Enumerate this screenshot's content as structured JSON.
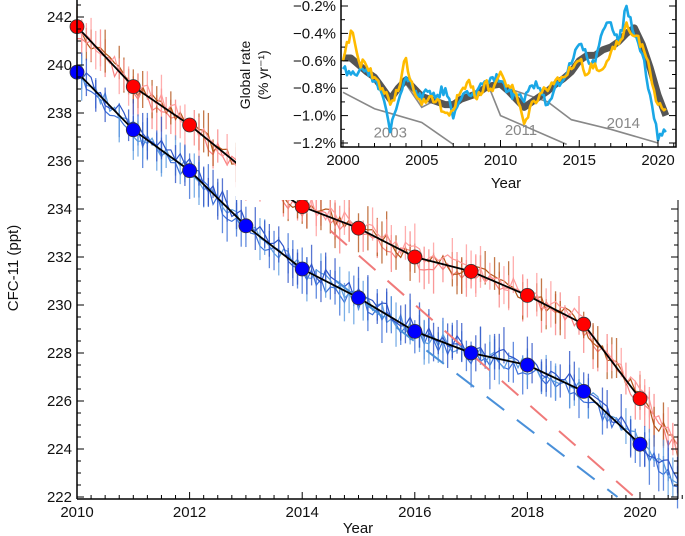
{
  "chart_data": [
    {
      "type": "line",
      "xlabel": "Year",
      "ylabel": "CFC-11 (ppt)",
      "xlim": [
        2010,
        2020.75
      ],
      "ylim": [
        222,
        242.5
      ],
      "xticks": [
        "2010",
        "2012",
        "2014",
        "2016",
        "2018",
        "2020"
      ],
      "yticks": [
        "222",
        "224",
        "226",
        "228",
        "230",
        "232",
        "234",
        "236",
        "238",
        "240",
        "242"
      ],
      "grid": false,
      "x": [
        2010,
        2011,
        2012,
        2013,
        2014,
        2015,
        2016,
        2017,
        2018,
        2019,
        2020
      ],
      "series": [
        {
          "color": "#ff0000",
          "line_color": "#000000",
          "values": [
            241.6,
            239.1,
            237.5,
            235.6,
            234.1,
            233.2,
            232.0,
            231.4,
            230.4,
            229.2,
            226.1
          ]
        },
        {
          "color": "#0000ff",
          "line_color": "#000000",
          "values": [
            239.7,
            237.3,
            235.6,
            233.3,
            231.5,
            230.3,
            228.9,
            228.0,
            227.5,
            226.4,
            224.2
          ]
        }
      ],
      "station_colors": {
        "red_group": [
          "#f98080",
          "#b5561b",
          "#ff9a9a"
        ],
        "blue_group": [
          "#3b6fd8",
          "#5b9ce0",
          "#2f55c8"
        ]
      },
      "projections": [
        {
          "color": "#f07a7a",
          "style": "dashed",
          "points": [
            [
              2014.5,
              233.1
            ],
            [
              2019.9,
              222
            ]
          ]
        },
        {
          "color": "#4a90d9",
          "style": "dashed",
          "points": [
            [
              2014.6,
              231.0
            ],
            [
              2019.6,
              222
            ]
          ]
        }
      ]
    },
    {
      "type": "line",
      "xlabel": "Year",
      "ylabel": "Global rate\n(% yr⁻¹)",
      "ylabel_line1": "Global rate",
      "ylabel_line2": "(% yr⁻¹)",
      "xlim": [
        2000,
        2021.2
      ],
      "ylim": [
        -1.22,
        -0.17
      ],
      "xticks": [
        "2000",
        "2005",
        "2010",
        "2015",
        "2020"
      ],
      "yticks": [
        "−1.2%",
        "−1.0%",
        "−0.8%",
        "−0.6%",
        "−0.4%",
        "−0.2%"
      ],
      "ytick_values": [
        -1.2,
        -1.0,
        -0.8,
        -0.6,
        -0.4,
        -0.2
      ],
      "grid": false,
      "x": [
        2000,
        2000.5,
        2001,
        2001.5,
        2002,
        2002.5,
        2003,
        2003.5,
        2004,
        2004.5,
        2005,
        2005.5,
        2006,
        2006.5,
        2007,
        2007.5,
        2008,
        2008.5,
        2009,
        2009.5,
        2010,
        2010.5,
        2011,
        2011.5,
        2012,
        2012.5,
        2013,
        2013.5,
        2014,
        2014.5,
        2015,
        2015.5,
        2016,
        2016.5,
        2017,
        2017.5,
        2018,
        2018.5,
        2019,
        2019.5,
        2020,
        2020.5
      ],
      "series": [
        {
          "color": "#555555",
          "values": [
            -0.58,
            -0.58,
            -0.63,
            -0.68,
            -0.72,
            -0.8,
            -0.88,
            -0.8,
            -0.74,
            -0.8,
            -0.86,
            -0.88,
            -0.9,
            -0.92,
            -0.92,
            -0.88,
            -0.86,
            -0.84,
            -0.8,
            -0.78,
            -0.77,
            -0.82,
            -0.88,
            -0.94,
            -0.9,
            -0.86,
            -0.82,
            -0.77,
            -0.73,
            -0.68,
            -0.6,
            -0.56,
            -0.56,
            -0.52,
            -0.5,
            -0.46,
            -0.4,
            -0.36,
            -0.48,
            -0.65,
            -0.85,
            -1.0
          ]
        },
        {
          "color": "#1aa7e6",
          "values": [
            -0.66,
            -0.7,
            -0.68,
            -0.66,
            -0.75,
            -0.85,
            -1.12,
            -0.9,
            -0.72,
            -0.82,
            -0.88,
            -0.82,
            -0.85,
            -0.8,
            -1.02,
            -0.88,
            -0.85,
            -0.82,
            -0.75,
            -0.72,
            -0.75,
            -0.82,
            -0.86,
            -0.9,
            -0.78,
            -0.8,
            -0.92,
            -0.78,
            -0.74,
            -0.62,
            -0.48,
            -0.58,
            -0.62,
            -0.38,
            -0.32,
            -0.48,
            -0.2,
            -0.42,
            -0.55,
            -0.85,
            -1.18,
            -1.12
          ]
        },
        {
          "color": "#ffbb00",
          "values": [
            -0.6,
            -0.38,
            -0.6,
            -0.64,
            -0.72,
            -0.8,
            -0.92,
            -0.82,
            -0.58,
            -0.82,
            -0.92,
            -0.86,
            -0.88,
            -0.98,
            -0.96,
            -0.82,
            -0.74,
            -0.88,
            -0.76,
            -0.82,
            -0.68,
            -0.78,
            -0.84,
            -1.06,
            -0.9,
            -0.84,
            -0.82,
            -0.74,
            -0.72,
            -0.66,
            -0.6,
            -0.7,
            -0.62,
            -0.66,
            -0.54,
            -0.48,
            -0.32,
            -0.42,
            -0.48,
            -0.68,
            -0.92,
            -0.95
          ]
        }
      ],
      "reference_lines": [
        {
          "label": "2003",
          "color": "#888888",
          "points": [
            [
              2000,
              -0.83
            ],
            [
              2002,
              -0.95
            ],
            [
              2005,
              -1.05
            ],
            [
              2006,
              -1.13
            ],
            [
              2007,
              -1.21
            ]
          ]
        },
        {
          "label": "",
          "color": "#888888",
          "points": [
            [
              2004,
              -0.77
            ],
            [
              2005,
              -0.94
            ],
            [
              2006,
              -0.88
            ]
          ]
        },
        {
          "label": "2011",
          "color": "#888888",
          "points": [
            [
              2009.3,
              -0.8
            ],
            [
              2010,
              -1.0
            ],
            [
              2014.2,
              -1.21
            ]
          ]
        },
        {
          "label": "2014",
          "color": "#888888",
          "points": [
            [
              2010.2,
              -0.79
            ],
            [
              2013,
              -0.9
            ],
            [
              2014.5,
              -1.03
            ],
            [
              2017,
              -1.1
            ],
            [
              2020,
              -1.2
            ]
          ]
        }
      ]
    }
  ]
}
